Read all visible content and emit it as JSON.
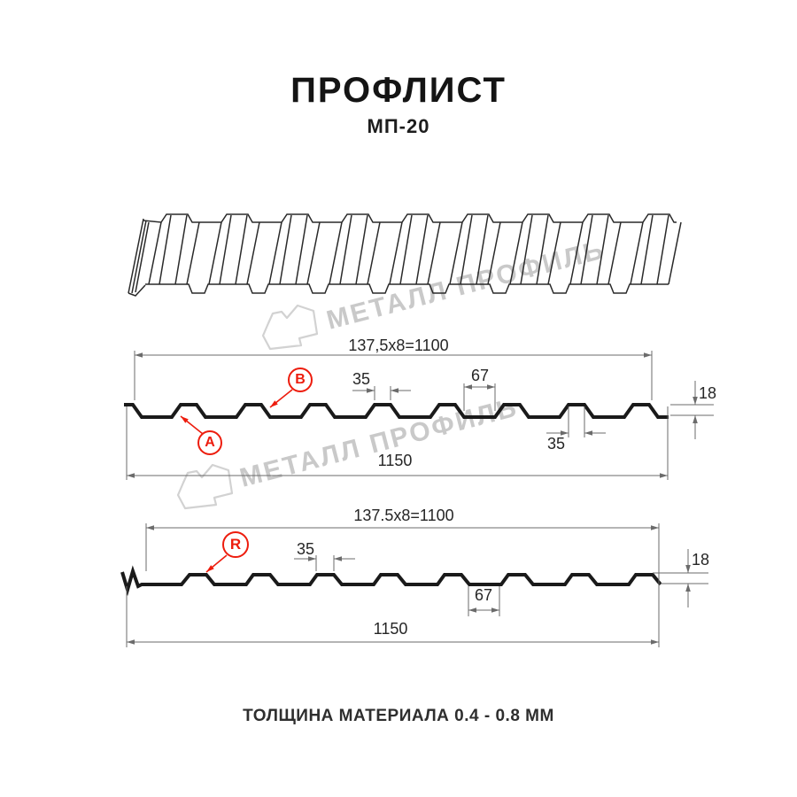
{
  "header": {
    "title": "ПРОФЛИСТ",
    "subtitle": "МП-20"
  },
  "footer": {
    "note": "ТОЛЩИНА МАТЕРИАЛА 0.4 - 0.8 ММ"
  },
  "watermark": {
    "text": "МЕТАЛЛ ПРОФИЛЬ"
  },
  "colors": {
    "ink": "#1a1a1a",
    "drawing_line": "#2a2a2a",
    "dim_line": "#6b6b6b",
    "dim_text": "#262626",
    "accent_red": "#ed1c0d",
    "watermark_gray": "#c9c9c9",
    "logo_outline": "#d2d2d2"
  },
  "diagram_top": {
    "working_width_label": "137,5x8=1100",
    "rib_top_width_label": "35",
    "valley_width_label": "67",
    "profile_height_label": "18",
    "rib_bottom_width_label": "35",
    "total_width_label": "1150",
    "marker_a": "A",
    "marker_b": "B"
  },
  "diagram_bottom": {
    "working_width_label": "137.5x8=1100",
    "rib_top_width_label": "35",
    "valley_width_label": "67",
    "profile_height_label": "18",
    "total_width_label": "1150",
    "marker_r": "R"
  }
}
